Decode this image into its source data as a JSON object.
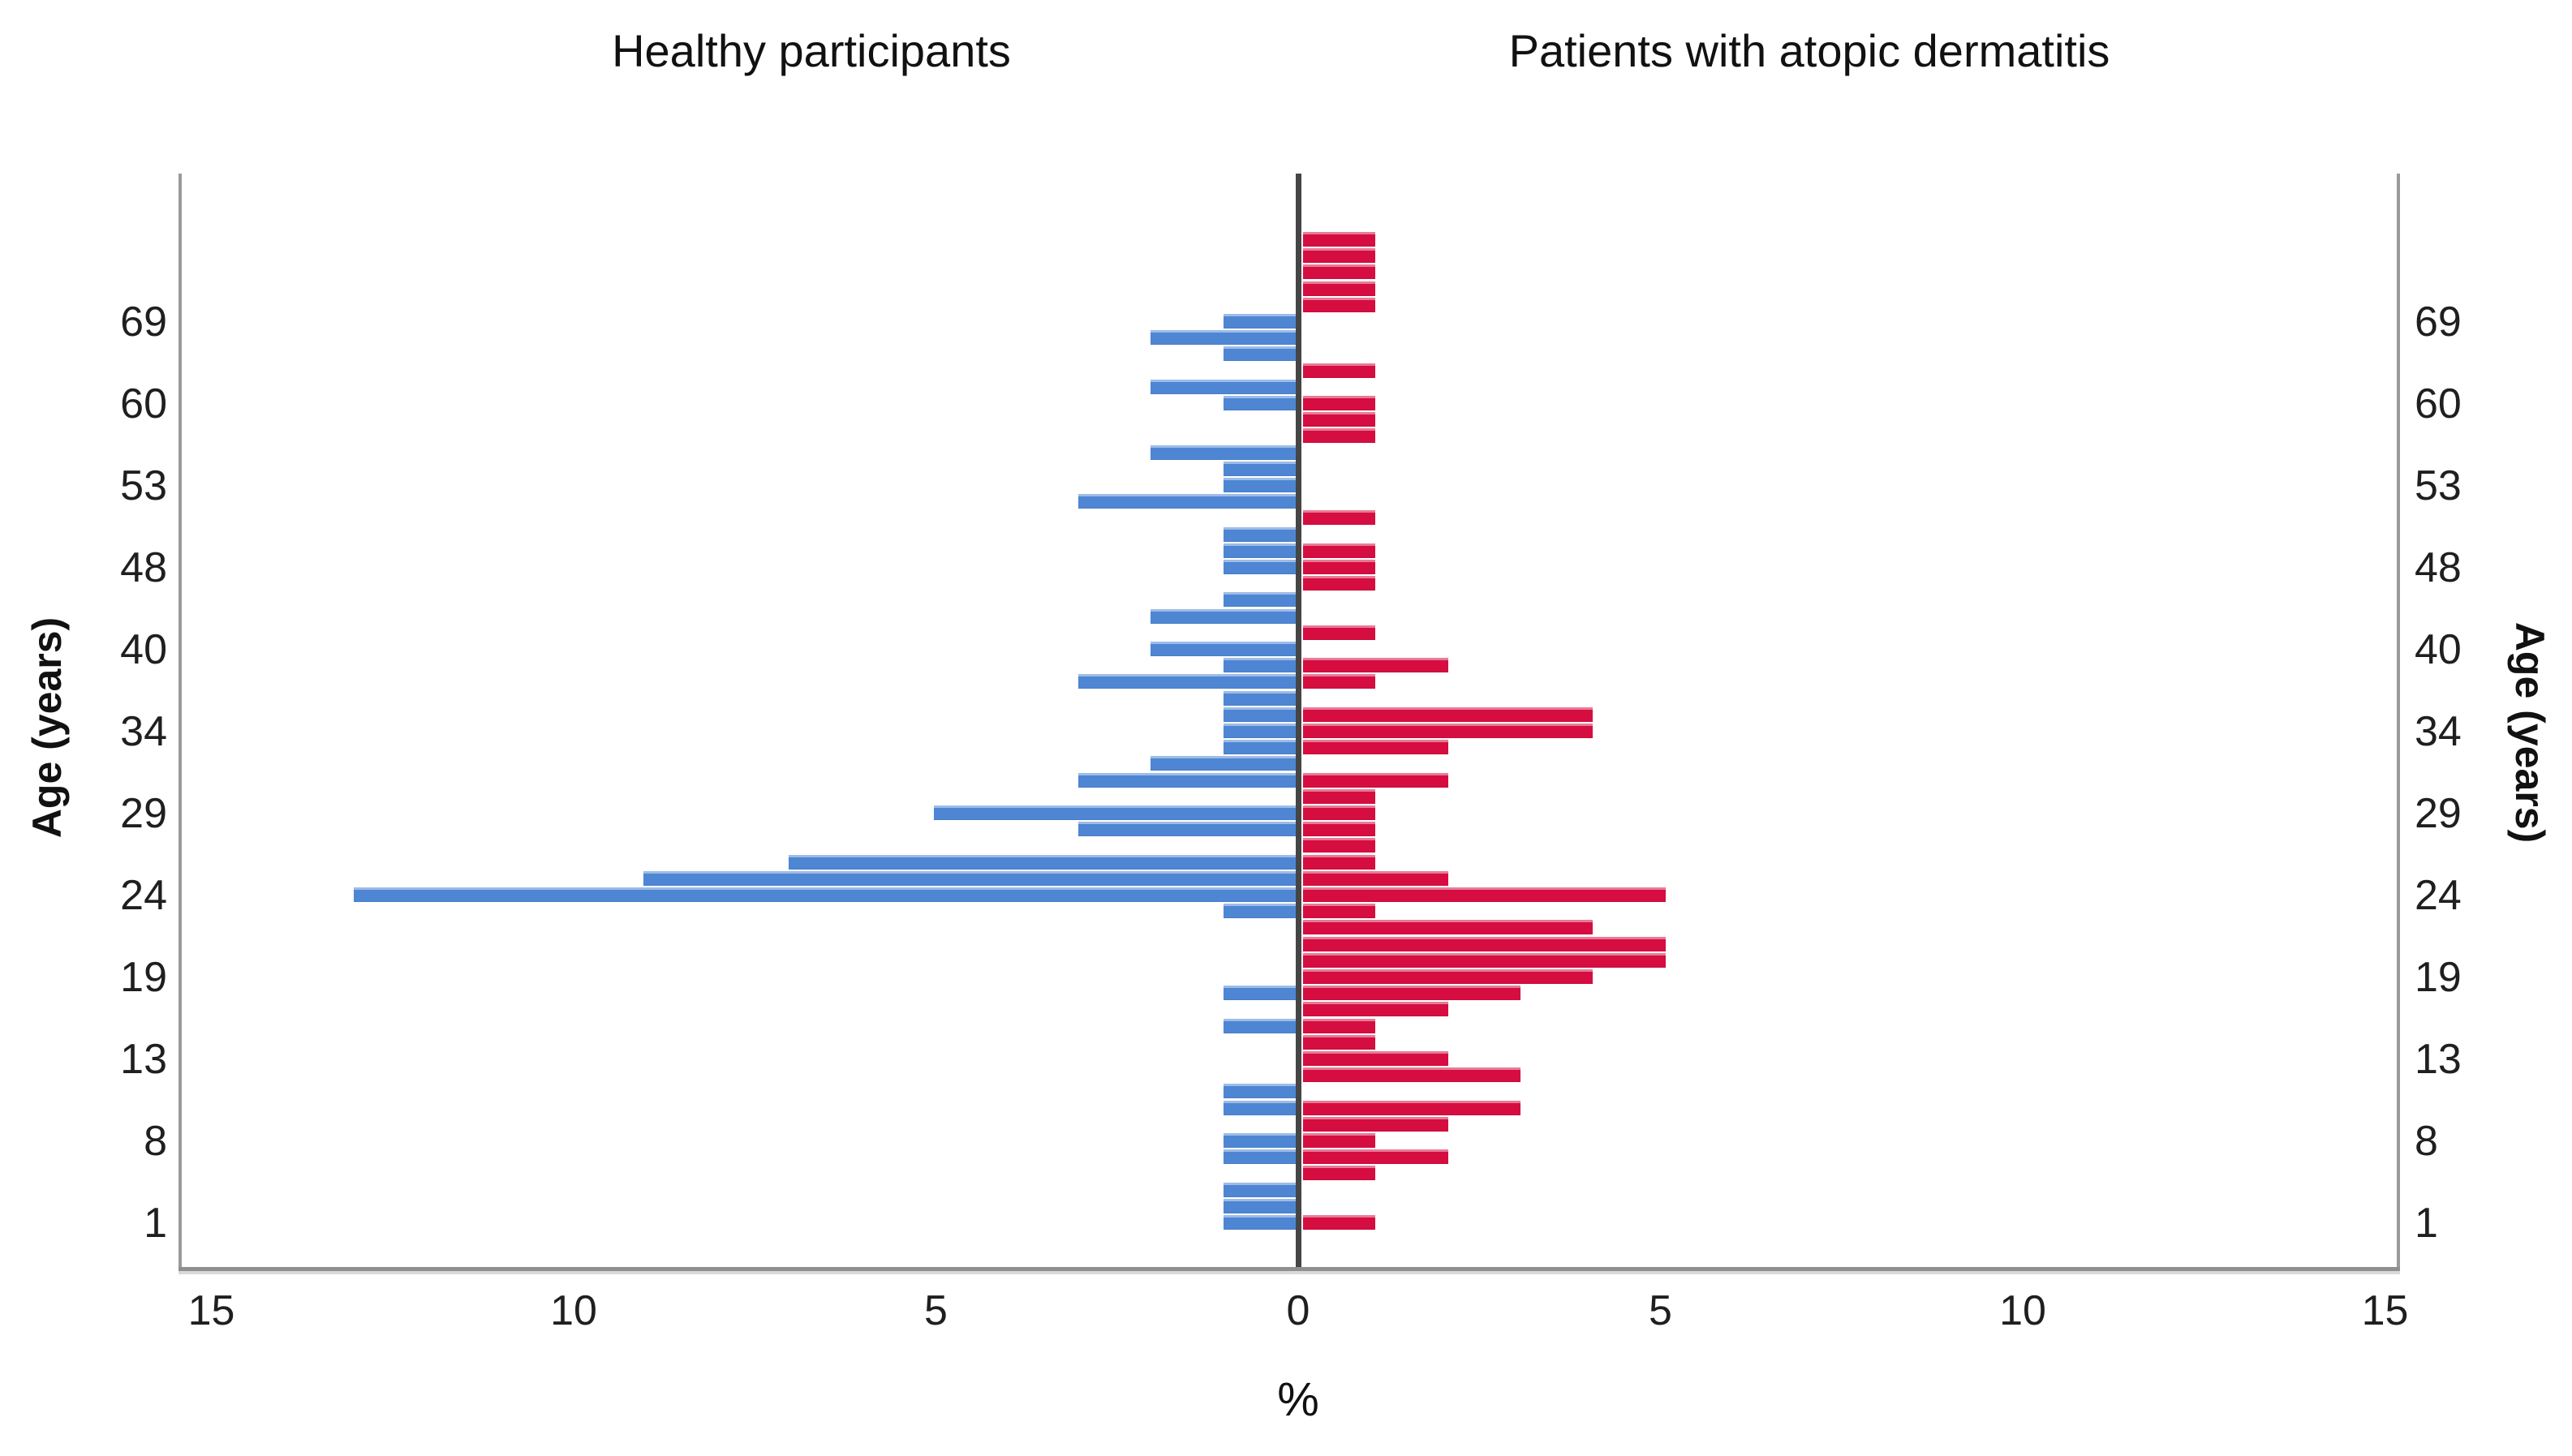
{
  "titles": {
    "left": "Healthy participants",
    "right": "Patients with atopic dermatitis"
  },
  "axes": {
    "y_axis_label_left": "Age (years)",
    "y_axis_label_right": "Age (years)",
    "x_axis_label": "%",
    "x_tick_labels": [
      "15",
      "10",
      "5",
      "0",
      "5",
      "10",
      "15"
    ],
    "x_tick_values": [
      -15,
      -10,
      -5,
      0,
      5,
      10,
      15
    ],
    "y_tick_labels": [
      "69",
      "60",
      "53",
      "48",
      "40",
      "34",
      "29",
      "24",
      "19",
      "13",
      "8",
      "1"
    ]
  },
  "colors": {
    "healthy_bar": "#4e86d3",
    "patients_bar": "#d60d40",
    "center_line": "#454545",
    "frame": "#9a9a9a",
    "text": "#1f1f1f"
  },
  "chart_data": {
    "type": "bar",
    "variant": "population-pyramid",
    "title_left": "Healthy participants",
    "title_right": "Patients with atopic dermatitis",
    "xlabel": "%",
    "ylabel": "Age (years)",
    "x_axis_range_each_side_pct": [
      0,
      15
    ],
    "x_ticks_pct": [
      0,
      5,
      10,
      15
    ],
    "grid": false,
    "legend": "none",
    "series": [
      {
        "name": "Healthy participants",
        "side": "left",
        "color": "#4e86d3"
      },
      {
        "name": "Patients with atopic dermatitis",
        "side": "right",
        "color": "#d60d40"
      }
    ],
    "rows_note": "Rows ordered top (oldest) to bottom (youngest); values are percent of each group; age label shown only on labeled ticks",
    "rows": [
      {
        "age": "",
        "healthy": 0,
        "patients": 1
      },
      {
        "age": "",
        "healthy": 0,
        "patients": 1
      },
      {
        "age": "",
        "healthy": 0,
        "patients": 1
      },
      {
        "age": "",
        "healthy": 0,
        "patients": 1
      },
      {
        "age": "",
        "healthy": 0,
        "patients": 1
      },
      {
        "age": "69",
        "healthy": 1,
        "patients": 0
      },
      {
        "age": "",
        "healthy": 2,
        "patients": 0
      },
      {
        "age": "",
        "healthy": 1,
        "patients": 0
      },
      {
        "age": "",
        "healthy": 0,
        "patients": 1
      },
      {
        "age": "",
        "healthy": 2,
        "patients": 0
      },
      {
        "age": "60",
        "healthy": 1,
        "patients": 1
      },
      {
        "age": "",
        "healthy": 0,
        "patients": 1
      },
      {
        "age": "",
        "healthy": 0,
        "patients": 1
      },
      {
        "age": "",
        "healthy": 2,
        "patients": 0
      },
      {
        "age": "",
        "healthy": 1,
        "patients": 0
      },
      {
        "age": "53",
        "healthy": 1,
        "patients": 0
      },
      {
        "age": "",
        "healthy": 3,
        "patients": 0
      },
      {
        "age": "",
        "healthy": 0,
        "patients": 1
      },
      {
        "age": "",
        "healthy": 1,
        "patients": 0
      },
      {
        "age": "",
        "healthy": 1,
        "patients": 1
      },
      {
        "age": "48",
        "healthy": 1,
        "patients": 1
      },
      {
        "age": "",
        "healthy": 0,
        "patients": 1
      },
      {
        "age": "",
        "healthy": 1,
        "patients": 0
      },
      {
        "age": "",
        "healthy": 2,
        "patients": 0
      },
      {
        "age": "",
        "healthy": 0,
        "patients": 1
      },
      {
        "age": "40",
        "healthy": 2,
        "patients": 0
      },
      {
        "age": "",
        "healthy": 1,
        "patients": 2
      },
      {
        "age": "",
        "healthy": 3,
        "patients": 1
      },
      {
        "age": "",
        "healthy": 1,
        "patients": 0
      },
      {
        "age": "",
        "healthy": 1,
        "patients": 4
      },
      {
        "age": "34",
        "healthy": 1,
        "patients": 4
      },
      {
        "age": "",
        "healthy": 1,
        "patients": 2
      },
      {
        "age": "",
        "healthy": 2,
        "patients": 0
      },
      {
        "age": "",
        "healthy": 3,
        "patients": 2
      },
      {
        "age": "",
        "healthy": 0,
        "patients": 1
      },
      {
        "age": "29",
        "healthy": 5,
        "patients": 1
      },
      {
        "age": "",
        "healthy": 3,
        "patients": 1
      },
      {
        "age": "",
        "healthy": 0,
        "patients": 1
      },
      {
        "age": "",
        "healthy": 7,
        "patients": 1
      },
      {
        "age": "",
        "healthy": 9,
        "patients": 2
      },
      {
        "age": "24",
        "healthy": 13,
        "patients": 5
      },
      {
        "age": "",
        "healthy": 1,
        "patients": 1
      },
      {
        "age": "",
        "healthy": 0,
        "patients": 4
      },
      {
        "age": "",
        "healthy": 0,
        "patients": 5
      },
      {
        "age": "",
        "healthy": 0,
        "patients": 5
      },
      {
        "age": "19",
        "healthy": 0,
        "patients": 4
      },
      {
        "age": "",
        "healthy": 1,
        "patients": 3
      },
      {
        "age": "",
        "healthy": 0,
        "patients": 2
      },
      {
        "age": "",
        "healthy": 1,
        "patients": 1
      },
      {
        "age": "",
        "healthy": 0,
        "patients": 1
      },
      {
        "age": "13",
        "healthy": 0,
        "patients": 2
      },
      {
        "age": "",
        "healthy": 0,
        "patients": 3
      },
      {
        "age": "",
        "healthy": 1,
        "patients": 0
      },
      {
        "age": "",
        "healthy": 1,
        "patients": 3
      },
      {
        "age": "",
        "healthy": 0,
        "patients": 2
      },
      {
        "age": "8",
        "healthy": 1,
        "patients": 1
      },
      {
        "age": "",
        "healthy": 1,
        "patients": 2
      },
      {
        "age": "",
        "healthy": 0,
        "patients": 1
      },
      {
        "age": "",
        "healthy": 1,
        "patients": 0
      },
      {
        "age": "",
        "healthy": 1,
        "patients": 0
      },
      {
        "age": "1",
        "healthy": 1,
        "patients": 1
      }
    ]
  }
}
